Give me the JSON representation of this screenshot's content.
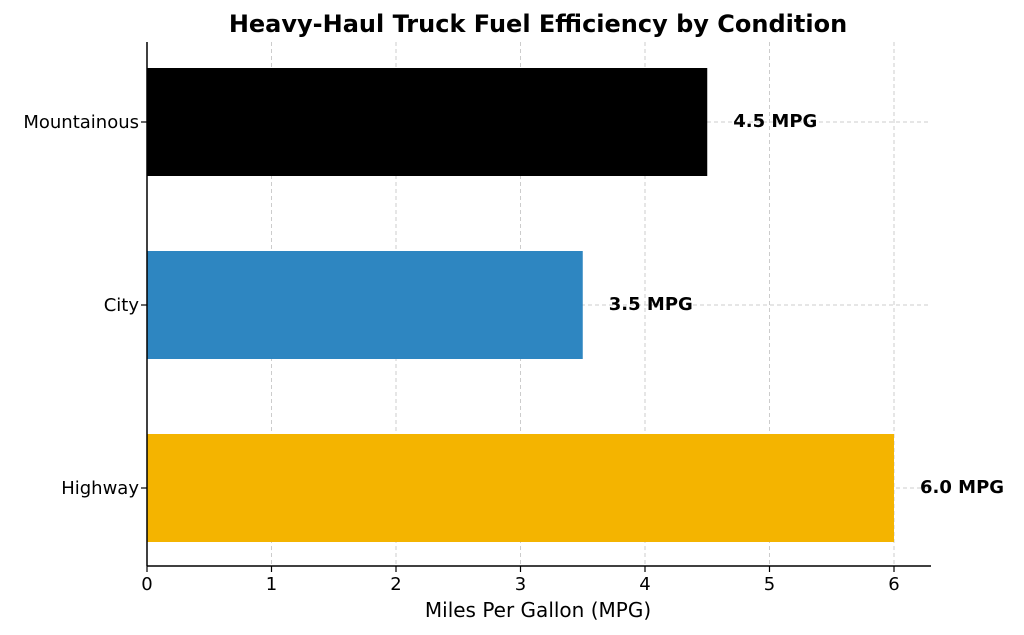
{
  "chart_data": {
    "type": "bar",
    "orientation": "horizontal",
    "title": "Heavy-Haul Truck Fuel Efficiency by Condition",
    "xlabel": "Miles Per Gallon (MPG)",
    "ylabel": "",
    "categories": [
      "Mountainous",
      "City",
      "Highway"
    ],
    "values": [
      4.5,
      3.5,
      6.0
    ],
    "data_labels": [
      "4.5 MPG",
      "3.5 MPG",
      "6.0 MPG"
    ],
    "colors": [
      "#000000",
      "#2e86c1",
      "#f4b400"
    ],
    "xlim": [
      0,
      6.3
    ],
    "xticks": [
      0,
      1,
      2,
      3,
      4,
      5,
      6
    ],
    "grid": true
  }
}
